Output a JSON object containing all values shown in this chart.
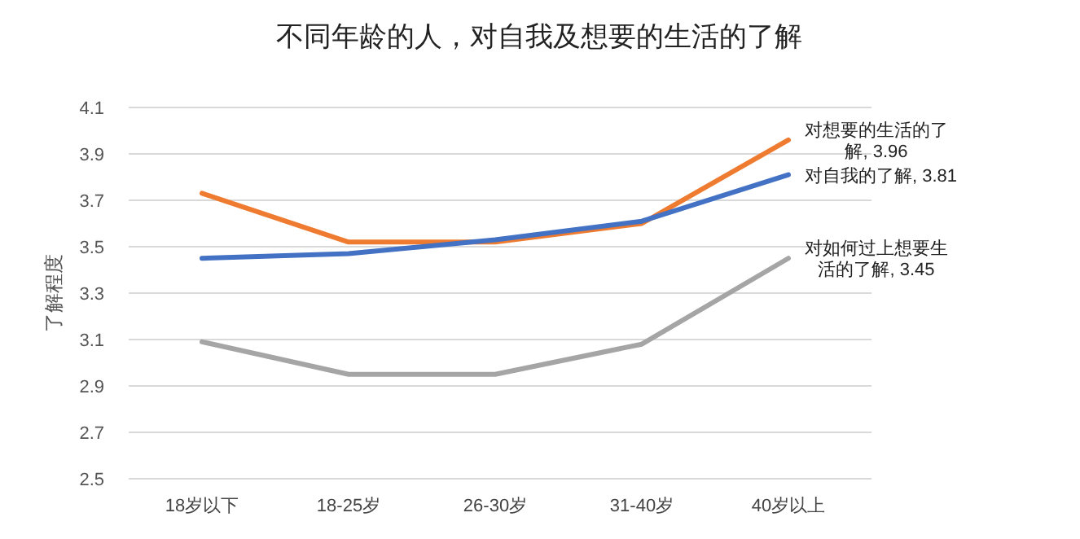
{
  "chart_data": {
    "type": "line",
    "title": "不同年龄的人，对自我及想要的生活的了解",
    "ylabel": "了解程度",
    "categories": [
      "18岁以下",
      "18-25岁",
      "26-30岁",
      "31-40岁",
      "40岁以上"
    ],
    "series": [
      {
        "color": "#ee7b30",
        "values": [
          3.73,
          3.52,
          3.52,
          3.6,
          3.96
        ]
      },
      {
        "color": "#4371c3",
        "values": [
          3.45,
          3.47,
          3.53,
          3.61,
          3.81
        ]
      },
      {
        "color": "#a5a5a5",
        "values": [
          3.09,
          2.95,
          2.95,
          3.08,
          3.45
        ]
      }
    ],
    "annotations": [
      {
        "text": "对想要的生活的了解, 3.96",
        "x": "40岁以上",
        "y": 3.96
      },
      {
        "text": "对自我的了解, 3.81",
        "x": "40岁以上",
        "y": 3.81
      },
      {
        "text": "对如何过上想要生活的了解, 3.45",
        "x": "40岁以上",
        "y": 3.45
      }
    ],
    "ylim": [
      2.5,
      4.1
    ],
    "yticks": [
      2.5,
      2.7,
      2.9,
      3.1,
      3.3,
      3.5,
      3.7,
      3.9,
      4.1
    ],
    "grid": "y",
    "marker": "none",
    "line_style": "solid"
  }
}
